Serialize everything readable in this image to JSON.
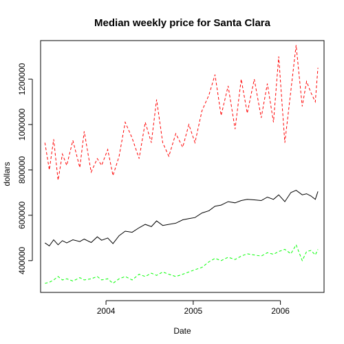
{
  "chart_data": {
    "type": "line",
    "title": "Median weekly price for Santa Clara",
    "xlabel": "Date",
    "ylabel": "dollars",
    "x_ticks": [
      {
        "label": "2004",
        "value": 2004.0
      },
      {
        "label": "2005",
        "value": 2005.0
      },
      {
        "label": "2006",
        "value": 2006.0
      }
    ],
    "y_ticks": [
      {
        "label": "400000",
        "value": 400000
      },
      {
        "label": "600000",
        "value": 600000
      },
      {
        "label": "800000",
        "value": 800000
      },
      {
        "label": "1000000",
        "value": 1000000
      },
      {
        "label": "1200000",
        "value": 1200000
      }
    ],
    "xlim": [
      2003.25,
      2006.5
    ],
    "ylim": [
      260000,
      1370000
    ],
    "grid": false,
    "legend": "none",
    "series": [
      {
        "color": "#ff0000",
        "dash": "dashed",
        "points": [
          [
            2003.3,
            920000
          ],
          [
            2003.35,
            800000
          ],
          [
            2003.4,
            935000
          ],
          [
            2003.45,
            755000
          ],
          [
            2003.5,
            870000
          ],
          [
            2003.55,
            820000
          ],
          [
            2003.62,
            930000
          ],
          [
            2003.7,
            810000
          ],
          [
            2003.75,
            970000
          ],
          [
            2003.83,
            790000
          ],
          [
            2003.9,
            850000
          ],
          [
            2003.95,
            820000
          ],
          [
            2004.02,
            890000
          ],
          [
            2004.08,
            775000
          ],
          [
            2004.15,
            860000
          ],
          [
            2004.22,
            1010000
          ],
          [
            2004.3,
            940000
          ],
          [
            2004.38,
            850000
          ],
          [
            2004.45,
            1010000
          ],
          [
            2004.52,
            920000
          ],
          [
            2004.58,
            1110000
          ],
          [
            2004.65,
            920000
          ],
          [
            2004.72,
            860000
          ],
          [
            2004.8,
            960000
          ],
          [
            2004.88,
            900000
          ],
          [
            2004.95,
            1000000
          ],
          [
            2005.02,
            920000
          ],
          [
            2005.1,
            1060000
          ],
          [
            2005.18,
            1130000
          ],
          [
            2005.25,
            1220000
          ],
          [
            2005.32,
            1040000
          ],
          [
            2005.4,
            1170000
          ],
          [
            2005.48,
            980000
          ],
          [
            2005.55,
            1200000
          ],
          [
            2005.62,
            1050000
          ],
          [
            2005.7,
            1200000
          ],
          [
            2005.78,
            1030000
          ],
          [
            2005.85,
            1180000
          ],
          [
            2005.92,
            1010000
          ],
          [
            2005.98,
            1300000
          ],
          [
            2006.05,
            920000
          ],
          [
            2006.12,
            1150000
          ],
          [
            2006.18,
            1350000
          ],
          [
            2006.25,
            1080000
          ],
          [
            2006.3,
            1190000
          ],
          [
            2006.35,
            1140000
          ],
          [
            2006.4,
            1100000
          ],
          [
            2006.43,
            1250000
          ]
        ]
      },
      {
        "color": "#000000",
        "dash": "solid",
        "points": [
          [
            2003.3,
            478000
          ],
          [
            2003.35,
            465000
          ],
          [
            2003.4,
            492000
          ],
          [
            2003.45,
            470000
          ],
          [
            2003.5,
            488000
          ],
          [
            2003.55,
            478000
          ],
          [
            2003.62,
            492000
          ],
          [
            2003.7,
            484000
          ],
          [
            2003.75,
            495000
          ],
          [
            2003.83,
            480000
          ],
          [
            2003.9,
            505000
          ],
          [
            2003.95,
            490000
          ],
          [
            2004.02,
            500000
          ],
          [
            2004.08,
            475000
          ],
          [
            2004.15,
            510000
          ],
          [
            2004.22,
            530000
          ],
          [
            2004.3,
            525000
          ],
          [
            2004.38,
            545000
          ],
          [
            2004.45,
            560000
          ],
          [
            2004.52,
            550000
          ],
          [
            2004.58,
            575000
          ],
          [
            2004.65,
            555000
          ],
          [
            2004.72,
            560000
          ],
          [
            2004.8,
            565000
          ],
          [
            2004.88,
            580000
          ],
          [
            2004.95,
            585000
          ],
          [
            2005.02,
            590000
          ],
          [
            2005.1,
            610000
          ],
          [
            2005.18,
            620000
          ],
          [
            2005.25,
            640000
          ],
          [
            2005.32,
            645000
          ],
          [
            2005.4,
            660000
          ],
          [
            2005.48,
            655000
          ],
          [
            2005.55,
            665000
          ],
          [
            2005.62,
            670000
          ],
          [
            2005.7,
            668000
          ],
          [
            2005.78,
            665000
          ],
          [
            2005.85,
            680000
          ],
          [
            2005.92,
            670000
          ],
          [
            2005.98,
            690000
          ],
          [
            2006.05,
            660000
          ],
          [
            2006.12,
            700000
          ],
          [
            2006.18,
            710000
          ],
          [
            2006.25,
            690000
          ],
          [
            2006.3,
            695000
          ],
          [
            2006.35,
            685000
          ],
          [
            2006.4,
            670000
          ],
          [
            2006.43,
            705000
          ]
        ]
      },
      {
        "color": "#00ff00",
        "dash": "dashed",
        "points": [
          [
            2003.3,
            300000
          ],
          [
            2003.35,
            305000
          ],
          [
            2003.4,
            315000
          ],
          [
            2003.45,
            330000
          ],
          [
            2003.5,
            315000
          ],
          [
            2003.55,
            320000
          ],
          [
            2003.62,
            310000
          ],
          [
            2003.7,
            325000
          ],
          [
            2003.75,
            315000
          ],
          [
            2003.83,
            320000
          ],
          [
            2003.9,
            330000
          ],
          [
            2003.95,
            315000
          ],
          [
            2004.02,
            320000
          ],
          [
            2004.08,
            300000
          ],
          [
            2004.15,
            320000
          ],
          [
            2004.22,
            330000
          ],
          [
            2004.3,
            315000
          ],
          [
            2004.38,
            340000
          ],
          [
            2004.45,
            330000
          ],
          [
            2004.52,
            345000
          ],
          [
            2004.58,
            335000
          ],
          [
            2004.65,
            350000
          ],
          [
            2004.72,
            340000
          ],
          [
            2004.8,
            330000
          ],
          [
            2004.88,
            340000
          ],
          [
            2004.95,
            350000
          ],
          [
            2005.02,
            360000
          ],
          [
            2005.1,
            370000
          ],
          [
            2005.18,
            395000
          ],
          [
            2005.25,
            410000
          ],
          [
            2005.32,
            400000
          ],
          [
            2005.4,
            415000
          ],
          [
            2005.48,
            405000
          ],
          [
            2005.55,
            420000
          ],
          [
            2005.62,
            430000
          ],
          [
            2005.7,
            425000
          ],
          [
            2005.78,
            420000
          ],
          [
            2005.85,
            435000
          ],
          [
            2005.92,
            428000
          ],
          [
            2005.98,
            440000
          ],
          [
            2006.05,
            450000
          ],
          [
            2006.12,
            430000
          ],
          [
            2006.18,
            470000
          ],
          [
            2006.25,
            400000
          ],
          [
            2006.3,
            440000
          ],
          [
            2006.35,
            445000
          ],
          [
            2006.4,
            425000
          ],
          [
            2006.43,
            450000
          ]
        ]
      }
    ]
  }
}
